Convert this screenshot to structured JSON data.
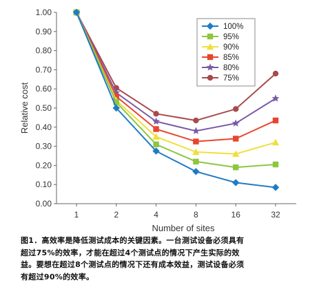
{
  "chart_data": {
    "type": "line",
    "xlabel": "Number of sites",
    "ylabel": "Relative cost",
    "categories": [
      "1",
      "2",
      "4",
      "8",
      "16",
      "32"
    ],
    "ylim": [
      0,
      1
    ],
    "yticks": [
      "0.00",
      "0.10",
      "0.20",
      "0.30",
      "0.40",
      "0.50",
      "0.60",
      "0.70",
      "0.80",
      "0.90",
      "1.00"
    ],
    "grid": false,
    "legend_position": "top-right",
    "series": [
      {
        "name": "100%",
        "color": "#1f7cc4",
        "marker": "diamond",
        "values": [
          1.0,
          0.5,
          0.275,
          0.168,
          0.11,
          0.085
        ]
      },
      {
        "name": "95%",
        "color": "#8dc63f",
        "marker": "square",
        "values": [
          1.0,
          0.53,
          0.31,
          0.22,
          0.19,
          0.205
        ]
      },
      {
        "name": "90%",
        "color": "#f0df3c",
        "marker": "triangle",
        "values": [
          1.0,
          0.54,
          0.35,
          0.27,
          0.26,
          0.32
        ]
      },
      {
        "name": "85%",
        "color": "#e8452e",
        "marker": "square",
        "values": [
          1.0,
          0.56,
          0.39,
          0.325,
          0.34,
          0.435
        ]
      },
      {
        "name": "80%",
        "color": "#7a5aa6",
        "marker": "star",
        "values": [
          1.0,
          0.58,
          0.43,
          0.38,
          0.42,
          0.55
        ]
      },
      {
        "name": "75%",
        "color": "#a84a4a",
        "marker": "circle",
        "values": [
          1.0,
          0.605,
          0.47,
          0.435,
          0.495,
          0.68
        ]
      }
    ]
  },
  "caption": {
    "lines": [
      "图1．高效率是降低测试成本的关键因素。一台测试设备必须具有",
      "超过75%的效率，才能在超过4个测试点的情况下产生实际的效",
      "益。要想在超过8个测试点的情况下还有成本效益，测试设备必须",
      "有超过90%的效率。"
    ]
  }
}
